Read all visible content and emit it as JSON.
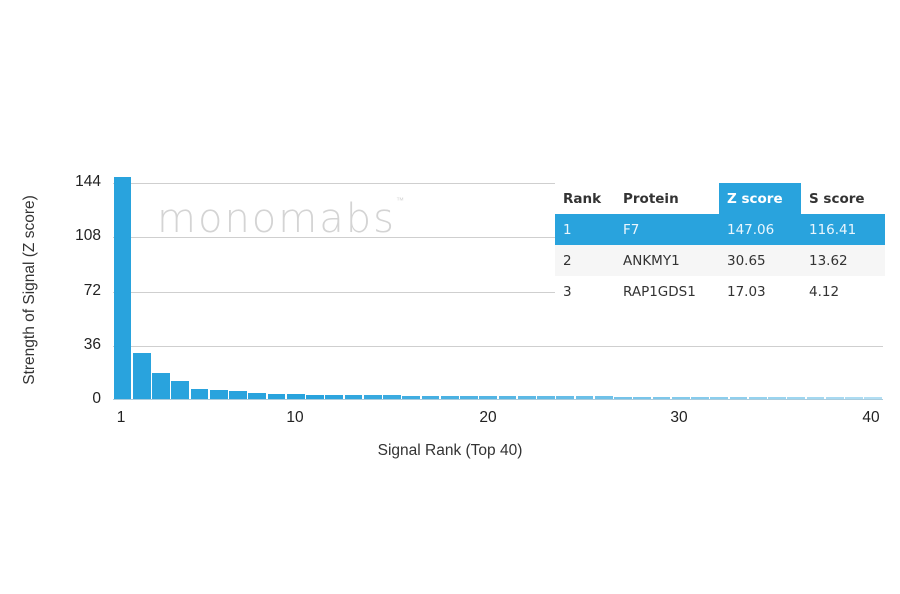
{
  "chart_data": {
    "type": "bar",
    "title": "",
    "xlabel": "Signal Rank (Top 40)",
    "ylabel": "Strength of Signal (Z score)",
    "ylim": [
      0,
      144
    ],
    "yticks": [
      0,
      36,
      72,
      108,
      144
    ],
    "xticks": [
      1,
      10,
      20,
      30,
      40
    ],
    "grid": true,
    "bar_color": "#29a3dd",
    "categories": [
      1,
      2,
      3,
      4,
      5,
      6,
      7,
      8,
      9,
      10,
      11,
      12,
      13,
      14,
      15,
      16,
      17,
      18,
      19,
      20,
      21,
      22,
      23,
      24,
      25,
      26,
      27,
      28,
      29,
      30,
      31,
      32,
      33,
      34,
      35,
      36,
      37,
      38,
      39,
      40
    ],
    "values": [
      147.06,
      30.65,
      17.03,
      12.0,
      6.5,
      6.0,
      5.5,
      4.0,
      3.2,
      3.0,
      2.8,
      2.7,
      2.6,
      2.5,
      2.4,
      2.3,
      2.2,
      2.1,
      2.0,
      2.0,
      1.9,
      1.9,
      1.8,
      1.8,
      1.7,
      1.7,
      1.6,
      1.6,
      1.5,
      1.5,
      1.5,
      1.4,
      1.4,
      1.4,
      1.3,
      1.3,
      1.3,
      1.2,
      1.2,
      1.2
    ]
  },
  "axes": {
    "ylabel": "Strength of Signal (Z score)",
    "xlabel": "Signal Rank (Top 40)",
    "yticks": [
      "144",
      "108",
      "72",
      "36",
      "0"
    ],
    "xticks": [
      "1",
      "10",
      "20",
      "30",
      "40"
    ]
  },
  "watermark": {
    "text": "monomabs",
    "tm": "™"
  },
  "table": {
    "headers": [
      "Rank",
      "Protein",
      "Z score",
      "S score"
    ],
    "active_header": "Z score",
    "rows": [
      {
        "rank": "1",
        "protein": "F7",
        "z": "147.06",
        "s": "116.41",
        "highlighted": true
      },
      {
        "rank": "2",
        "protein": "ANKMY1",
        "z": "30.65",
        "s": "13.62"
      },
      {
        "rank": "3",
        "protein": "RAP1GDS1",
        "z": "17.03",
        "s": "4.12"
      }
    ]
  },
  "colors": {
    "accent": "#29a3dd",
    "grid": "#cfcfcf"
  }
}
